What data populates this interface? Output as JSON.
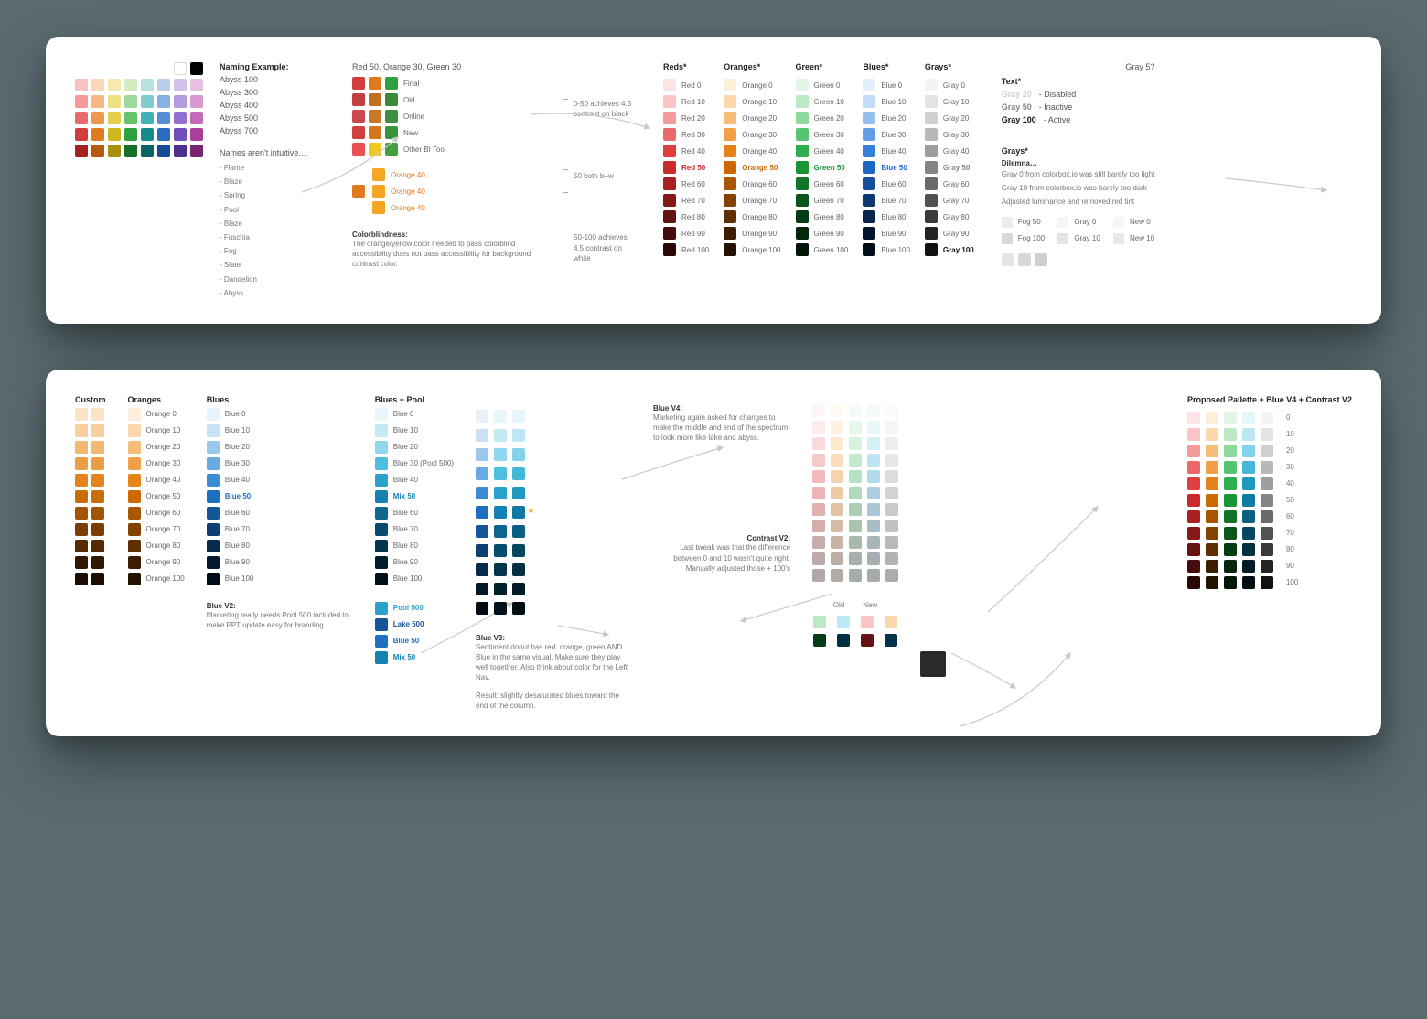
{
  "card1": {
    "palette_grid": {
      "rows": [
        [
          "#f8c2c2",
          "#f8d8b8",
          "#f5e9b0",
          "#d2ecc2",
          "#b8e2e2",
          "#b8d0ee",
          "#d2c2ec",
          "#e8c2e0"
        ],
        [
          "#f49a9a",
          "#f5b783",
          "#ede080",
          "#9dd99d",
          "#7ecccc",
          "#88b0e2",
          "#b49be0",
          "#d99ad0"
        ],
        [
          "#e86a6a",
          "#ee9a4e",
          "#e2d04c",
          "#64c46a",
          "#3fb2b2",
          "#548fd6",
          "#9270d0",
          "#c56ab8"
        ],
        [
          "#d33c3c",
          "#e07a1f",
          "#d2b820",
          "#2fa040",
          "#158c8c",
          "#2a6cc0",
          "#704fbc",
          "#a83f9c"
        ],
        [
          "#a52020",
          "#b85a0e",
          "#a8900f",
          "#167028",
          "#0c6464",
          "#174a94",
          "#4c3090",
          "#7a2472"
        ]
      ],
      "extra_top": [
        "#ffffff",
        "#000000"
      ]
    },
    "naming_example": {
      "title": "Naming Example:",
      "items": [
        "Abyss 100",
        "Abyss 300",
        "Abyss 400",
        "Abyss 500",
        "Abyss 700"
      ]
    },
    "names_note": {
      "title": "Names aren't intuitive…",
      "list": [
        "- Flame",
        "- Blaze",
        "- Spring",
        "- Pool",
        "- Blaze",
        "- Fuschia",
        "- Fog",
        "- Slate",
        "- Dandelion",
        "- Abyss"
      ]
    },
    "comparison": {
      "header": "Red 50, Orange 30, Green 30",
      "cols": [
        "#d33c3c",
        "#e07a1f",
        "#2fa040"
      ],
      "rows": [
        {
          "c": [
            "#d33c3c",
            "#e07a1f",
            "#2fa040"
          ],
          "l": "Final"
        },
        {
          "c": [
            "#c44040",
            "#c07020",
            "#3a8a3a"
          ],
          "l": "Old"
        },
        {
          "c": [
            "#c84a4a",
            "#c87828",
            "#3f9040"
          ],
          "l": "Online"
        },
        {
          "c": [
            "#d04040",
            "#d2781c",
            "#389438"
          ],
          "l": "New"
        },
        {
          "c": [
            "#e85050",
            "#ecc820",
            "#40a040"
          ],
          "l": "Other BI Tool"
        }
      ],
      "orange40": [
        {
          "c": "#f5a623",
          "l": "Orange 40"
        },
        {
          "c": "#f5a623",
          "l": "Orange 40"
        },
        {
          "c": "#f5a623",
          "l": "Orange 40"
        }
      ],
      "orange40_extra": "#e07a1f"
    },
    "colorblind": {
      "title": "Colorblindness:",
      "body": "The orange/yellow color needed to pass colorblind accessibility does not pass accessibility for background contrast color."
    },
    "contrast_notes": {
      "a": "0-50 achieves 4.5 contrast on black",
      "b": "50 both b+w",
      "c": "50-100 achieves 4.5 contrast on white"
    },
    "ramps": {
      "headers": [
        "Reds*",
        "Oranges*",
        "Green*",
        "Blues*",
        "Grays*"
      ],
      "levels": [
        "0",
        "10",
        "20",
        "30",
        "40",
        "50",
        "60",
        "70",
        "80",
        "90",
        "100"
      ],
      "reds": [
        "#fde4e4",
        "#fac5c5",
        "#f39a9a",
        "#ea6a6a",
        "#de4040",
        "#c92a2a",
        "#a82020",
        "#861818",
        "#651212",
        "#440c0c",
        "#2a0707"
      ],
      "red_names": [
        "Red 0",
        "Red 10",
        "Red 20",
        "Red 30",
        "Red 40",
        "Red 50",
        "Red 60",
        "Red 70",
        "Red 80",
        "Red 90",
        "Red 100"
      ],
      "oranges": [
        "#fdeeda",
        "#fbd8ac",
        "#f7bd78",
        "#f0a048",
        "#e6841c",
        "#cc6a00",
        "#a85600",
        "#844200",
        "#5f2f00",
        "#3d1e00",
        "#241200"
      ],
      "orange_names": [
        "Orange 0",
        "Orange 10",
        "Orange 20",
        "Orange 30",
        "Orange 40",
        "Orange 50",
        "Orange 60",
        "Orange 70",
        "Orange 80",
        "Orange 90",
        "Orange 100"
      ],
      "greens": [
        "#e2f5e6",
        "#bce8c5",
        "#8cd89d",
        "#58c472",
        "#2eae4e",
        "#189636",
        "#117428",
        "#0b561d",
        "#063c14",
        "#03260c",
        "#011606"
      ],
      "green_names": [
        "Green 0",
        "Green 10",
        "Green 20",
        "Green 30",
        "Green 40",
        "Green 50",
        "Green 60",
        "Green 70",
        "Green 80",
        "Green 90",
        "Green 100"
      ],
      "blues": [
        "#e4eefb",
        "#c2dbf7",
        "#94bff0",
        "#639fe6",
        "#3880da",
        "#1e66c4",
        "#154e9c",
        "#0e3874",
        "#08254e",
        "#04152e",
        "#020b18"
      ],
      "blue_names": [
        "Blue 0",
        "Blue 10",
        "Blue 20",
        "Blue 30",
        "Blue 40",
        "Blue 50",
        "Blue 60",
        "Blue 70",
        "Blue 80",
        "Blue 90",
        "Blue 100"
      ],
      "grays": [
        "#f4f4f4",
        "#e4e4e4",
        "#cfcfcf",
        "#b8b8b8",
        "#9e9e9e",
        "#848484",
        "#6a6a6a",
        "#525252",
        "#3a3a3a",
        "#242424",
        "#111111"
      ],
      "gray_names": [
        "Gray 0",
        "Gray 10",
        "Gray 20",
        "Gray 30",
        "Gray 40",
        "Gray 50",
        "Gray 60",
        "Gray 70",
        "Gray 80",
        "Gray 90",
        "Gray 100"
      ],
      "highlight_idx": 5,
      "highlight_colors": {
        "Red 50": "#c92a2a",
        "Orange 50": "#cc6a00",
        "Green 50": "#189636",
        "Blue 50": "#1e66c4",
        "Gray 100": "#111111"
      }
    },
    "text_states": {
      "title": "Text*",
      "rows": [
        {
          "l": "Gray 20",
          "r": "- Disabled",
          "c": "#cfcfcf"
        },
        {
          "l": "Gray 50",
          "r": "- Inactive",
          "c": "#848484"
        },
        {
          "l": "Gray 100",
          "r": "- Active",
          "c": "#111111"
        }
      ]
    },
    "gray5": "Gray 5?",
    "dilemma": {
      "title": "Grays*",
      "sub": "Dilemna…",
      "lines": [
        "Gray 0 from colorbox.io was still barely too light",
        "Gray 10 from colorbox.io was barely too dark",
        "Adjusted luminance and removed red tint"
      ],
      "table": {
        "cols": [
          "Fog 50",
          "Gray 0",
          "New 0",
          "Fog 100",
          "Gray 10",
          "New 10"
        ],
        "vals": [
          "#ececec",
          "#f4f4f4",
          "#f6f6f6",
          "#d8d8d8",
          "#e4e4e4",
          "#e8e8e8"
        ]
      },
      "sample_sw": [
        "#e4e4e4",
        "#d8d8d8",
        "#cfcfcf"
      ]
    }
  },
  "card2": {
    "custom": {
      "title": "Custom",
      "rows": [
        [
          "#fbe1c5",
          "#fbe1c5"
        ],
        [
          "#f8cfa0",
          "#f8cfa0"
        ],
        [
          "#f3b872",
          "#f3b872"
        ],
        [
          "#ec9e46",
          "#ec9e46"
        ],
        [
          "#e2831e",
          "#e2831e"
        ],
        [
          "#c96c0c",
          "#c96c0c"
        ],
        [
          "#a25406",
          "#a25406"
        ],
        [
          "#7b3e03",
          "#7b3e03"
        ],
        [
          "#552a01",
          "#552a01"
        ],
        [
          "#331800",
          "#331800"
        ],
        [
          "#1c0d00",
          "#1c0d00"
        ]
      ]
    },
    "oranges": {
      "title": "Oranges",
      "names": [
        "Orange 0",
        "Orange 10",
        "Orange 20",
        "Orange 30",
        "Orange 40",
        "Orange 50",
        "Orange 60",
        "Orange 70",
        "Orange 80",
        "Orange 90",
        "Orange 100"
      ],
      "vals": [
        "#fdeeda",
        "#fbd8ac",
        "#f7bd78",
        "#f0a048",
        "#e6841c",
        "#cc6a00",
        "#a85600",
        "#844200",
        "#5f2f00",
        "#3d1e00",
        "#241200"
      ]
    },
    "blues": {
      "title": "Blues",
      "names": [
        "Blue 0",
        "Blue 10",
        "Blue 20",
        "Blue 30",
        "Blue 40",
        "Blue 50",
        "Blue 60",
        "Blue 70",
        "Blue 80",
        "Blue 90",
        "Blue 100"
      ],
      "vals": [
        "#e8f2fb",
        "#c8e1f6",
        "#9ac8ee",
        "#68aae2",
        "#3b8cd4",
        "#1e6fbf",
        "#155699",
        "#0e3f72",
        "#08294c",
        "#04172b",
        "#020c16"
      ],
      "highlight_idx": 5
    },
    "blues_pool": {
      "title": "Blues + Pool",
      "names": [
        "Blue 0",
        "Blue 10",
        "Blue 20",
        "Blue 30 (Pool 500)",
        "Blue 40",
        "Mix 50",
        "Blue 60",
        "Blue 70",
        "Blue 80",
        "Blue 90",
        "Blue 100"
      ],
      "vals": [
        "#e8f6fb",
        "#c4eaf6",
        "#8fd6ee",
        "#4fbde0",
        "#2aa0cc",
        "#1482b2",
        "#0c6690",
        "#074c6e",
        "#04344c",
        "#021f2e",
        "#011018"
      ],
      "highlight_idx": 5
    },
    "blue_compare": {
      "cols": [
        [
          "#e8f2fb",
          "#c8e1f6",
          "#9ac8ee",
          "#68aae2",
          "#3b8cd4",
          "#1e6fbf",
          "#155699",
          "#0e3f72",
          "#08294c",
          "#04172b",
          "#020c16"
        ],
        [
          "#e8f6fb",
          "#c4eaf6",
          "#8fd6ee",
          "#4fbde0",
          "#2aa0cc",
          "#1482b2",
          "#0c6690",
          "#074c6e",
          "#04344c",
          "#021f2e",
          "#011018"
        ],
        [
          "#e4f5fb",
          "#bce8f5",
          "#82d2ea",
          "#44b6d8",
          "#1f98c0",
          "#0f7aa4",
          "#0a5f82",
          "#064660",
          "#033040",
          "#011c26",
          "#000e14"
        ]
      ],
      "star_col": 2,
      "star_row": 5
    },
    "blue_v4": {
      "title": "Blue V4:",
      "body": "Marketing again asked for changes to make the middle and end of the spectrum to look more like lake and abyss."
    },
    "contrast_v2": {
      "title": "Contrast V2:",
      "body": "Last tweak was that the difference between 0 and 10 wasn't quite right. Manually adjusted those + 100's"
    },
    "blue_v2": {
      "title": "Blue V2:",
      "body": "Marketing really needs Pool 500 included to make PPT update easy for branding",
      "chips": [
        {
          "c": "#2aa0cc",
          "l": "Pool 500",
          "lc": "#2aa0cc"
        },
        {
          "c": "#155699",
          "l": "Lake 500",
          "lc": "#155699"
        },
        {
          "c": "#1e6fbf",
          "l": "Blue 50",
          "lc": "#1e6fbf"
        },
        {
          "c": "#1482b2",
          "l": "Mix 50",
          "lc": "#1482b2"
        }
      ]
    },
    "blue_v3": {
      "title": "Blue V3:",
      "body": "Sentiment donut has red, orange, green AND Blue in the same visual. Make sure they play well together. Also think about color for the Left Nav.",
      "result": "Result: slightly desaturated blues toward the end of the column."
    },
    "faded_grid": {
      "cols": [
        [
          "#fde4e4",
          "#fac5c5",
          "#f39a9a",
          "#ea6a6a",
          "#de4040",
          "#c92a2a",
          "#a82020",
          "#861818",
          "#651212",
          "#440c0c",
          "#2a0707"
        ],
        [
          "#fdeeda",
          "#fbd8ac",
          "#f7bd78",
          "#f0a048",
          "#e6841c",
          "#cc6a00",
          "#a85600",
          "#844200",
          "#5f2f00",
          "#3d1e00",
          "#241200"
        ],
        [
          "#e2f5e6",
          "#bce8c5",
          "#8cd89d",
          "#58c472",
          "#2eae4e",
          "#189636",
          "#117428",
          "#0b561d",
          "#063c14",
          "#03260c",
          "#011606"
        ],
        [
          "#e4f5fb",
          "#bce8f5",
          "#82d2ea",
          "#44b6d8",
          "#1f98c0",
          "#0f7aa4",
          "#0a5f82",
          "#064660",
          "#033040",
          "#011c26",
          "#000e14"
        ],
        [
          "#f4f4f4",
          "#e4e4e4",
          "#cfcfcf",
          "#b8b8b8",
          "#9e9e9e",
          "#848484",
          "#6a6a6a",
          "#525252",
          "#3a3a3a",
          "#242424",
          "#111111"
        ]
      ],
      "opacity": 0.35
    },
    "oldnew": {
      "label_old": "Old",
      "label_new": "New",
      "pairs": [
        {
          "old": "#bce8c5",
          "new": "#063c14"
        },
        {
          "old": "#bce8f5",
          "new": "#033040"
        },
        {
          "old": "#fac5c5",
          "new": "#651212"
        },
        {
          "old": "#fbd8ac",
          "new": "#04344c"
        }
      ],
      "extra": "#2a2a2a"
    },
    "proposed": {
      "title": "Proposed Pallette + Blue V4 + Contrast V2",
      "levels": [
        "0",
        "10",
        "20",
        "30",
        "40",
        "50",
        "60",
        "70",
        "80",
        "90",
        "100"
      ],
      "cols": [
        [
          "#fde4e4",
          "#fac5c5",
          "#f39a9a",
          "#ea6a6a",
          "#de4040",
          "#c92a2a",
          "#a82020",
          "#861818",
          "#651212",
          "#440c0c",
          "#2a0707"
        ],
        [
          "#fdeeda",
          "#fbd8ac",
          "#f7bd78",
          "#f0a048",
          "#e6841c",
          "#cc6a00",
          "#a85600",
          "#844200",
          "#5f2f00",
          "#3d1e00",
          "#241200"
        ],
        [
          "#e2f5e6",
          "#bce8c5",
          "#8cd89d",
          "#58c472",
          "#2eae4e",
          "#189636",
          "#117428",
          "#0b561d",
          "#063c14",
          "#03260c",
          "#011606"
        ],
        [
          "#e4f5fb",
          "#bce8f5",
          "#82d2ea",
          "#44b6d8",
          "#1f98c0",
          "#0f7aa4",
          "#0a5f82",
          "#064660",
          "#033040",
          "#011c26",
          "#000e14"
        ],
        [
          "#f4f4f4",
          "#e4e4e4",
          "#cfcfcf",
          "#b8b8b8",
          "#9e9e9e",
          "#848484",
          "#6a6a6a",
          "#525252",
          "#3a3a3a",
          "#242424",
          "#111111"
        ]
      ]
    }
  }
}
